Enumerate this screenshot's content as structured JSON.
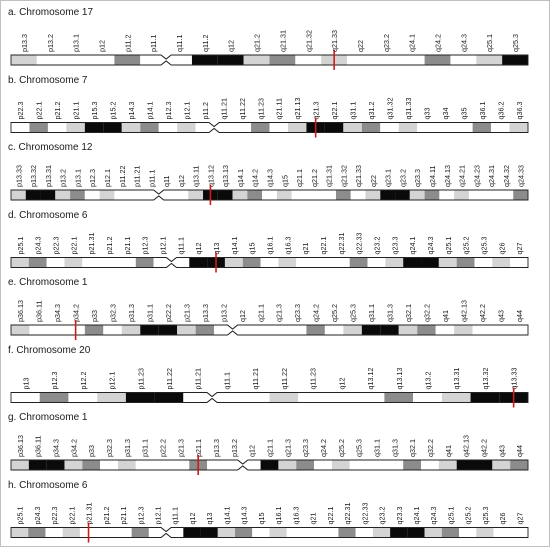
{
  "colors": {
    "white": "#ffffff",
    "light": "#d4d4d4",
    "mid": "#8c8c8c",
    "black": "#0a0a0a",
    "marker": "#d11a1a",
    "outline": "#222222"
  },
  "panels": [
    {
      "label": "a. Chromosome 17",
      "bands": [
        "p13.3",
        "p13.2",
        "p13.1",
        "p12",
        "p11.2",
        "p11.1",
        "q11.1",
        "q11.2",
        "q12",
        "q21.2",
        "q21.31",
        "q21.32",
        "q21.33",
        "q22",
        "q23.2",
        "q24.1",
        "q24.2",
        "q24.3",
        "q25.1",
        "q25.3"
      ],
      "centromere_index": 5,
      "marker_band": "q21.33"
    },
    {
      "label": "b. Chromosome 7",
      "bands": [
        "p22.3",
        "p22.1",
        "p21.2",
        "p21.1",
        "p15.3",
        "p15.2",
        "p14.3",
        "p14.1",
        "p12.3",
        "p12.1",
        "p11.2",
        "q11.21",
        "q11.22",
        "q11.23",
        "q21.11",
        "q21.13",
        "q21.3",
        "q22.1",
        "q31.1",
        "q31.2",
        "q31.32",
        "q31.33",
        "q33",
        "q34",
        "q35",
        "q36.1",
        "q36.2",
        "q36.3"
      ],
      "centromere_index": 10,
      "marker_band": "q21.3"
    },
    {
      "label": "c. Chromosome 12",
      "bands": [
        "p13.33",
        "p13.32",
        "p13.31",
        "p13.2",
        "p13.1",
        "p12.3",
        "p12.1",
        "p11.22",
        "p11.21",
        "p11.1",
        "q11",
        "q12",
        "q13.11",
        "q13.12",
        "q13.13",
        "q14.1",
        "q14.2",
        "q14.3",
        "q15",
        "q21.1",
        "q21.2",
        "q21.31",
        "q21.32",
        "q21.33",
        "q22",
        "q23.1",
        "q23.2",
        "q23.3",
        "q24.11",
        "q24.13",
        "q24.21",
        "q24.23",
        "q24.31",
        "q24.32",
        "q24.33"
      ],
      "centromere_index": 9,
      "marker_band": "q13.12"
    },
    {
      "label": "d. Chromosome 6",
      "bands": [
        "p25.1",
        "p24.3",
        "p22.3",
        "p22.1",
        "p21.31",
        "p21.2",
        "p21.1",
        "p12.3",
        "p12.1",
        "q11.1",
        "q12",
        "q13",
        "q14.1",
        "q15",
        "q16.1",
        "q16.3",
        "q21",
        "q22.1",
        "q22.31",
        "q22.33",
        "q23.2",
        "q23.3",
        "q24.1",
        "q24.3",
        "q25.1",
        "q25.2",
        "q25.3",
        "q26",
        "q27"
      ],
      "centromere_index": 8,
      "marker_band": "q13"
    },
    {
      "label": "e. Chromosome 1",
      "bands": [
        "p36.13",
        "p36.11",
        "p34.3",
        "p34.2",
        "p33",
        "p32.3",
        "p31.3",
        "p31.1",
        "p22.2",
        "p21.3",
        "p13.3",
        "p13.2",
        "q12",
        "q21.1",
        "q21.3",
        "q23.3",
        "q24.2",
        "q25.2",
        "q25.3",
        "q31.1",
        "q31.3",
        "q32.1",
        "q32.2",
        "q41",
        "q42.13",
        "q42.2",
        "q43",
        "q44"
      ],
      "centromere_index": 11,
      "marker_band": "p34.2"
    },
    {
      "label": "f. Chromosome 20",
      "bands": [
        "p13",
        "p12.3",
        "p12.2",
        "p12.1",
        "p11.23",
        "p11.22",
        "p11.21",
        "q11.1",
        "q11.21",
        "q11.22",
        "q11.23",
        "q12",
        "q13.12",
        "q13.13",
        "q13.2",
        "q13.31",
        "q13.32",
        "q13.33"
      ],
      "centromere_index": 6,
      "marker_band": "q13.33"
    },
    {
      "label": "g. Chromosome 1",
      "bands": [
        "p36.13",
        "p36.11",
        "p34.3",
        "p34.2",
        "p33",
        "p32.3",
        "p31.3",
        "p31.1",
        "p22.2",
        "p21.3",
        "p21.1",
        "p13.3",
        "p13.2",
        "q12",
        "q21.1",
        "q21.3",
        "q23.3",
        "q24.2",
        "q25.2",
        "q25.3",
        "q31.1",
        "q31.3",
        "q32.1",
        "q32.2",
        "q41",
        "q42.13",
        "q42.2",
        "q43",
        "q44"
      ],
      "centromere_index": 12,
      "marker_band": "p21.1"
    },
    {
      "label": "h. Chromosome 6",
      "bands": [
        "p25.1",
        "p24.3",
        "p22.3",
        "p22.1",
        "p21.31",
        "p21.2",
        "p21.1",
        "p12.3",
        "p12.1",
        "q11.1",
        "q12",
        "q13",
        "q14.1",
        "q14.3",
        "q15",
        "q16.1",
        "q16.3",
        "q21",
        "q22.1",
        "q22.31",
        "q22.33",
        "q23.2",
        "q23.3",
        "q24.1",
        "q24.3",
        "q25.1",
        "q25.2",
        "q25.3",
        "q26",
        "q27"
      ],
      "centromere_index": 8,
      "marker_band": "p21.31"
    }
  ]
}
